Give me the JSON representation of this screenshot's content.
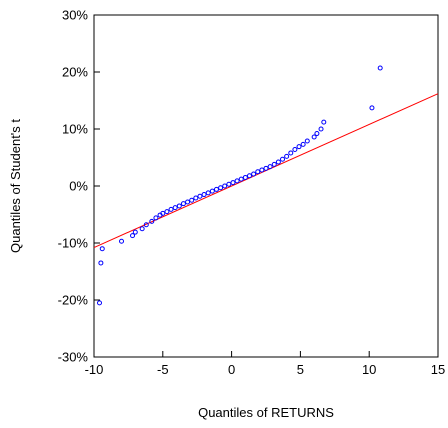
{
  "chart_data": {
    "type": "scatter",
    "title": "",
    "xlabel": "Quantiles of RETURNS",
    "ylabel": "Quantiles of Student's t",
    "xlim": [
      -10,
      15
    ],
    "ylim": [
      -30,
      30
    ],
    "x_ticks": [
      -10,
      -5,
      0,
      5,
      10,
      15
    ],
    "x_tick_labels": [
      "-10",
      "-5",
      "0",
      "5",
      "10",
      "15"
    ],
    "y_ticks": [
      30,
      20,
      10,
      0,
      -10,
      -20,
      -30
    ],
    "y_tick_labels": [
      "30%",
      "20%",
      "10%",
      "0%",
      "-10%",
      "-20%",
      "-30%"
    ],
    "grid": false,
    "legend": "none",
    "point_color": "#0000ff",
    "line_color": "#ff0000",
    "reference_line": {
      "x": [
        -10,
        15
      ],
      "y": [
        -10.8,
        16.2
      ]
    },
    "points": {
      "x": [
        -9.6,
        -9.5,
        -9.4,
        -8.0,
        -7.2,
        -7.0,
        -6.5,
        -6.2,
        -5.8,
        -5.5,
        -5.2,
        -5.0,
        -4.7,
        -4.4,
        -4.1,
        -3.8,
        -3.5,
        -3.2,
        -2.9,
        -2.6,
        -2.3,
        -2.0,
        -1.7,
        -1.4,
        -1.1,
        -0.8,
        -0.5,
        -0.2,
        0.1,
        0.4,
        0.7,
        1.0,
        1.3,
        1.6,
        1.9,
        2.2,
        2.5,
        2.8,
        3.1,
        3.4,
        3.7,
        4.0,
        4.3,
        4.6,
        4.9,
        5.2,
        5.5,
        6.0,
        6.2,
        6.5,
        6.7,
        10.2,
        10.8
      ],
      "y": [
        -20.5,
        -13.5,
        -11.0,
        -9.7,
        -8.7,
        -8.1,
        -7.5,
        -6.8,
        -6.2,
        -5.6,
        -5.1,
        -4.8,
        -4.5,
        -4.1,
        -3.8,
        -3.5,
        -3.1,
        -2.8,
        -2.5,
        -2.1,
        -1.8,
        -1.5,
        -1.2,
        -0.9,
        -0.6,
        -0.3,
        0.0,
        0.3,
        0.6,
        0.9,
        1.2,
        1.5,
        1.8,
        2.1,
        2.5,
        2.8,
        3.1,
        3.4,
        3.8,
        4.2,
        4.7,
        5.2,
        5.8,
        6.4,
        6.9,
        7.3,
        7.9,
        8.6,
        9.2,
        10.0,
        11.2,
        13.7,
        20.7
      ]
    }
  }
}
